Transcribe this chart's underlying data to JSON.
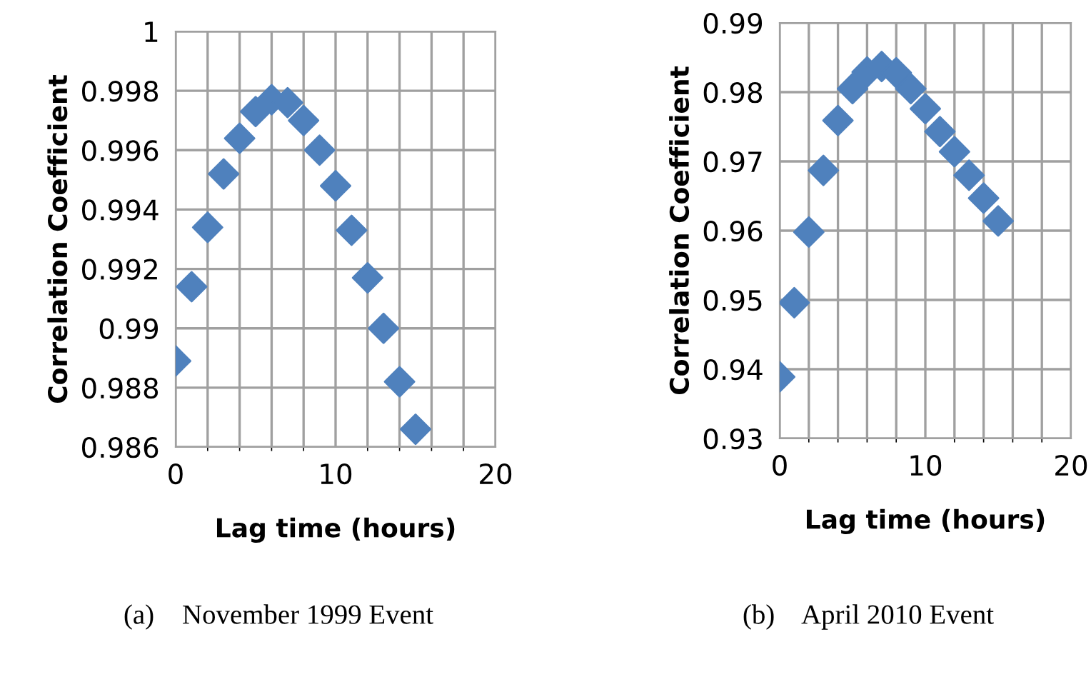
{
  "chart_data": [
    {
      "type": "scatter",
      "xlabel": "Lag time (hours)",
      "ylabel": "Correlation Coefficient",
      "annotations": [
        "(a)    November 1999 Event"
      ],
      "x": [
        0,
        1,
        2,
        3,
        4,
        5,
        6,
        7,
        8,
        9,
        10,
        11,
        12,
        13,
        14,
        15
      ],
      "series": [
        {
          "color": "#4f81bd",
          "values": [
            0.9889,
            0.9914,
            0.9934,
            0.9952,
            0.9964,
            0.9973,
            0.9977,
            0.9976,
            0.997,
            0.996,
            0.9948,
            0.9933,
            0.9917,
            0.99,
            0.9882,
            0.9866
          ]
        }
      ],
      "xlim": [
        0,
        20
      ],
      "xticks": [
        0,
        10,
        20
      ],
      "ylim": [
        0.986,
        1
      ],
      "yticks": [
        0.986,
        0.988,
        0.99,
        0.992,
        0.994,
        0.996,
        0.998,
        1
      ],
      "grid": true,
      "marker": "diamond"
    },
    {
      "type": "scatter",
      "xlabel": "Lag time (hours)",
      "ylabel": "Correlation Coefficient",
      "annotations": [
        "(b)    April 2010 Event"
      ],
      "x": [
        0,
        1,
        2,
        3,
        4,
        5,
        6,
        7,
        8,
        9,
        10,
        11,
        12,
        13,
        14,
        15
      ],
      "series": [
        {
          "color": "#4f81bd",
          "values": [
            0.9389,
            0.9496,
            0.9598,
            0.9687,
            0.9759,
            0.9805,
            0.9829,
            0.9837,
            0.9828,
            0.9805,
            0.9776,
            0.9743,
            0.9714,
            0.968,
            0.9647,
            0.9614
          ]
        }
      ],
      "xlim": [
        0,
        20
      ],
      "xticks": [
        0,
        10,
        20
      ],
      "ylim": [
        0.93,
        0.99
      ],
      "yticks": [
        0.93,
        0.94,
        0.95,
        0.96,
        0.97,
        0.98,
        0.99
      ],
      "grid": true,
      "marker": "diamond"
    }
  ]
}
